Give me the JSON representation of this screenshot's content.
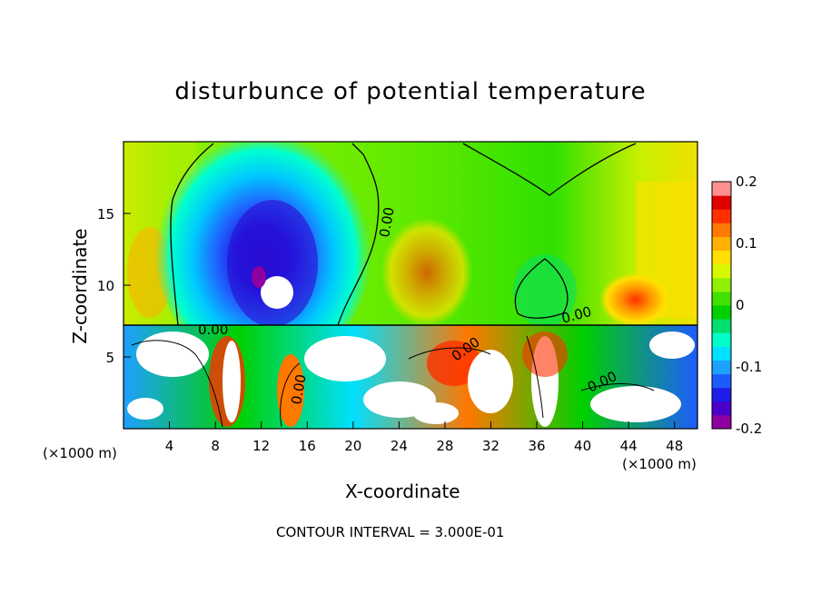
{
  "chart_data": {
    "type": "heatmap",
    "title": "disturbunce of potential temperature",
    "xlabel": "X-coordinate",
    "ylabel": "Z-coordinate",
    "x_unit_label": "(×1000 m)",
    "x_unit_label_right": "(×1000 m)",
    "xlim": [
      0,
      50
    ],
    "ylim": [
      0,
      20
    ],
    "x_ticks": [
      "4",
      "8",
      "12",
      "16",
      "20",
      "24",
      "28",
      "32",
      "36",
      "40",
      "44",
      "48"
    ],
    "y_ticks": [
      "5",
      "10",
      "15"
    ],
    "colorbar": {
      "range": [
        -0.2,
        0.2
      ],
      "tick_labels": [
        "0.2",
        "0.1",
        "0",
        "-0.1",
        "-0.2"
      ],
      "colors": [
        "#8e00a0",
        "#4a00c8",
        "#1d1de8",
        "#1e5bff",
        "#1ea0ff",
        "#00e0ff",
        "#00ffc8",
        "#00e070",
        "#00d000",
        "#40e000",
        "#90f000",
        "#d8f800",
        "#ffe000",
        "#ffb000",
        "#ff7800",
        "#ff3000",
        "#e00000",
        "#ff9090"
      ]
    },
    "contour_labels": [
      "0.00",
      "0.00",
      "0.00",
      "0.00",
      "0.00",
      "0.00"
    ],
    "contour_interval_text": "CONTOUR INTERVAL = 3.000E-01"
  }
}
